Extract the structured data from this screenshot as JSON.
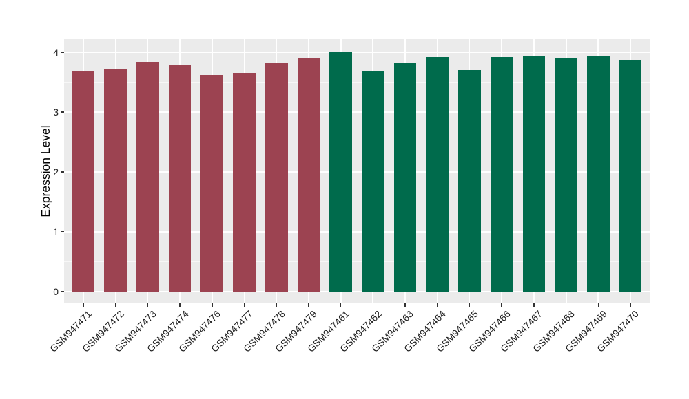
{
  "chart_data": {
    "type": "bar",
    "title": "",
    "xlabel": "",
    "ylabel": "Expression Level",
    "categories": [
      "GSM947471",
      "GSM947472",
      "GSM947473",
      "GSM947474",
      "GSM947476",
      "GSM947477",
      "GSM947478",
      "GSM947479",
      "GSM947461",
      "GSM947462",
      "GSM947463",
      "GSM947464",
      "GSM947465",
      "GSM947466",
      "GSM947467",
      "GSM947468",
      "GSM947469",
      "GSM947470"
    ],
    "values": [
      3.69,
      3.71,
      3.84,
      3.79,
      3.62,
      3.66,
      3.82,
      3.91,
      4.01,
      3.69,
      3.83,
      3.92,
      3.7,
      3.92,
      3.93,
      3.91,
      3.94,
      3.87
    ],
    "bar_colors": [
      "#9C4351",
      "#9C4351",
      "#9C4351",
      "#9C4351",
      "#9C4351",
      "#9C4351",
      "#9C4351",
      "#9C4351",
      "#006B4C",
      "#006B4C",
      "#006B4C",
      "#006B4C",
      "#006B4C",
      "#006B4C",
      "#006B4C",
      "#006B4C",
      "#006B4C",
      "#006B4C"
    ],
    "group_colors": {
      "left_group_red": "#9C4351",
      "right_group_green": "#006B4C"
    },
    "yticks": [
      0,
      1,
      2,
      3,
      4
    ],
    "yticks_minor": [
      0.5,
      1.5,
      2.5,
      3.5
    ],
    "ylim": [
      0,
      4
    ],
    "panel_ylim": [
      -0.2,
      4.22
    ],
    "grid": true,
    "legend": "none",
    "panel_bg": "#EBEBEB",
    "grid_color": "#FFFFFF",
    "tick_mark_color": "#333333",
    "axis_text_color": "#1F1F1F"
  }
}
